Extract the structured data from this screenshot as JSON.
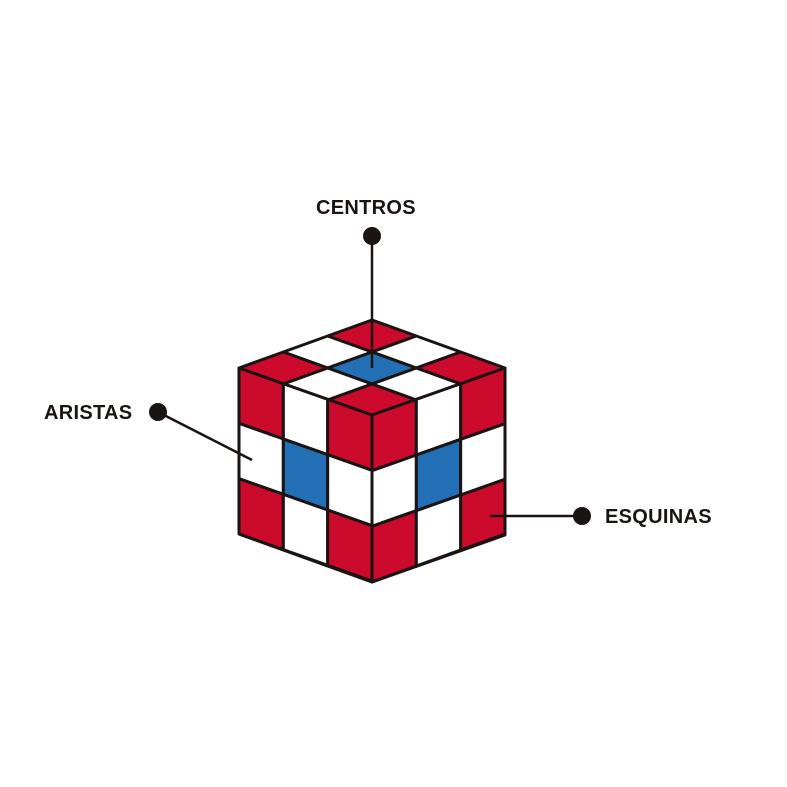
{
  "labels": {
    "centros": "CENTROS",
    "aristas": "ARISTAS",
    "esquinas": "ESQUINAS"
  },
  "colors": {
    "red": "#cc0a2b",
    "blue": "#2470b6",
    "white": "#ffffff",
    "line": "#1a1412"
  },
  "cube": {
    "top": [
      [
        "red",
        "white",
        "red"
      ],
      [
        "white",
        "blue",
        "white"
      ],
      [
        "red",
        "white",
        "red"
      ]
    ],
    "left": [
      [
        "red",
        "white",
        "red"
      ],
      [
        "white",
        "blue",
        "white"
      ],
      [
        "red",
        "white",
        "red"
      ]
    ],
    "right": [
      [
        "red",
        "white",
        "red"
      ],
      [
        "white",
        "blue",
        "white"
      ],
      [
        "red",
        "white",
        "red"
      ]
    ]
  }
}
